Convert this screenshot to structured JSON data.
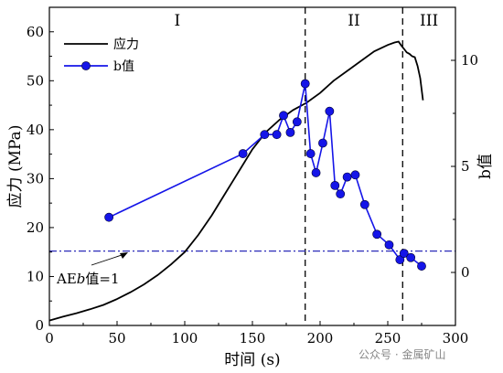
{
  "chart_data": {
    "type": "line",
    "title": "",
    "xlabel": "时间 (s)",
    "ylabel_left": "应力 (MPa)",
    "ylabel_right": "b值",
    "xlim": [
      0,
      300
    ],
    "ylim_left": [
      0,
      65
    ],
    "ylim_right": [
      -2.5,
      12.5
    ],
    "x_ticks": [
      0,
      50,
      100,
      150,
      200,
      250,
      300
    ],
    "y_ticks_left": [
      0,
      10,
      20,
      30,
      40,
      50,
      60
    ],
    "y_ticks_right": [
      0,
      5,
      10
    ],
    "grid": false,
    "legend_position": "top-left",
    "series": [
      {
        "name": "应力",
        "axis": "left",
        "color": "#000000",
        "marker": "none",
        "x": [
          0,
          10,
          20,
          30,
          40,
          50,
          60,
          70,
          80,
          90,
          100,
          110,
          120,
          130,
          140,
          150,
          160,
          170,
          180,
          190,
          200,
          210,
          220,
          230,
          240,
          250,
          255,
          258,
          260,
          262,
          264,
          266,
          268,
          270,
          272,
          274,
          276
        ],
        "y": [
          1.0,
          1.8,
          2.5,
          3.3,
          4.2,
          5.4,
          6.8,
          8.4,
          10.3,
          12.5,
          15.0,
          18.5,
          22.5,
          27.0,
          31.5,
          36.0,
          39.5,
          42.0,
          44.0,
          45.5,
          47.5,
          50.0,
          52.0,
          54.0,
          56.0,
          57.3,
          57.8,
          58.0,
          57.2,
          56.5,
          55.8,
          55.5,
          55.0,
          54.8,
          53.0,
          50.5,
          46.0
        ]
      },
      {
        "name": "b值",
        "axis": "right",
        "color": "#1515e8",
        "marker": "circle",
        "x": [
          44,
          143,
          159,
          168,
          173,
          178,
          183,
          189,
          193,
          197,
          202,
          207,
          211,
          215,
          220,
          226,
          233,
          242,
          251,
          259,
          262,
          267,
          275
        ],
        "y": [
          2.6,
          5.6,
          6.5,
          6.5,
          7.4,
          6.6,
          7.1,
          8.9,
          5.6,
          4.7,
          6.1,
          7.6,
          4.1,
          3.7,
          4.5,
          4.6,
          3.2,
          1.8,
          1.3,
          0.6,
          0.9,
          0.7,
          0.3
        ]
      }
    ],
    "reference_line": {
      "axis": "left",
      "y": 15.2,
      "color": "#2a2ab8",
      "style": "dash-dot",
      "label": "AEb值=1"
    },
    "stage_boundaries": [
      189,
      261
    ],
    "stage_labels": [
      "I",
      "II",
      "III"
    ]
  },
  "watermark": "公众号 · 金属矿山"
}
